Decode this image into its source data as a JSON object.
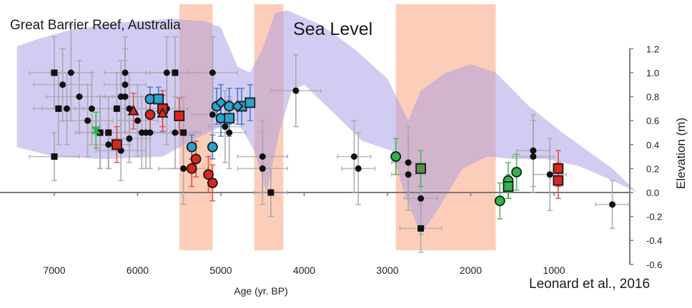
{
  "chart_data": {
    "type": "scatter",
    "title": "Sea Level",
    "subtitle": "Great Barrier Reef, Australia",
    "annotation": "Leonard et al., 2016",
    "xlabel": "Age (yr. BP)",
    "ylabel": "Elevation (m)",
    "xlim": [
      7500,
      0
    ],
    "ylim": [
      -0.6,
      1.2
    ],
    "x_ticks": [
      7000,
      6000,
      5000,
      4000,
      3000,
      2000,
      1000
    ],
    "x_tick_labels": [
      "7000",
      "6000",
      "5000",
      "4000",
      "3000",
      "2000",
      "1000"
    ],
    "y_ticks": [
      1.2,
      1.0,
      0.8,
      0.6,
      0.4,
      0.2,
      0.0,
      -0.2,
      -0.4,
      -0.6
    ],
    "y_tick_labels": [
      "1.2",
      "1.0",
      "0.8",
      "0.6",
      "0.4",
      "0.2",
      "0.0",
      "-0.2",
      "-0.4",
      "-0.6"
    ],
    "grid": false,
    "colors": {
      "envelope": "#c9c2f0",
      "band": "#fbc6ad",
      "overlap": "#d4a3b3",
      "black": "#111111",
      "blue": "#2aa3cf",
      "red": "#d8281f",
      "green": "#2fb34a",
      "olive": "#5f8b46",
      "errbar_gray": "#a8a6ad",
      "errbar_blue": "#3a78c4",
      "errbar_red": "#e0483a",
      "errbar_green": "#3cb54a",
      "axis": "#7a7a7a"
    },
    "shaded_bands": [
      {
        "label": "band-1",
        "x_from": 5500,
        "x_to": 5100
      },
      {
        "label": "band-2",
        "x_from": 4600,
        "x_to": 4250
      },
      {
        "label": "band-3",
        "x_from": 2900,
        "x_to": 1700
      }
    ],
    "sea_level_envelope": {
      "upper": [
        [
          7450,
          1.22
        ],
        [
          7200,
          1.28
        ],
        [
          6800,
          1.36
        ],
        [
          6200,
          1.42
        ],
        [
          5600,
          1.45
        ],
        [
          5200,
          1.43
        ],
        [
          5000,
          1.38
        ],
        [
          4800,
          1.05
        ],
        [
          4650,
          1.0
        ],
        [
          4500,
          1.2
        ],
        [
          4350,
          1.5
        ],
        [
          4200,
          1.52
        ],
        [
          3800,
          1.4
        ],
        [
          3400,
          1.2
        ],
        [
          3000,
          0.95
        ],
        [
          2750,
          0.6
        ],
        [
          2600,
          0.85
        ],
        [
          2300,
          1.0
        ],
        [
          2000,
          1.07
        ],
        [
          1700,
          1.0
        ],
        [
          1300,
          0.72
        ],
        [
          900,
          0.5
        ],
        [
          600,
          0.35
        ],
        [
          300,
          0.2
        ],
        [
          0,
          0.0
        ]
      ],
      "lower": [
        [
          0,
          0.0
        ],
        [
          300,
          0.1
        ],
        [
          700,
          0.22
        ],
        [
          1100,
          0.28
        ],
        [
          1500,
          0.28
        ],
        [
          1800,
          0.3
        ],
        [
          2100,
          0.2
        ],
        [
          2400,
          -0.15
        ],
        [
          2600,
          -0.35
        ],
        [
          2800,
          0.0
        ],
        [
          2950,
          0.35
        ],
        [
          3300,
          0.43
        ],
        [
          3700,
          0.7
        ],
        [
          4000,
          0.9
        ],
        [
          4150,
          0.85
        ],
        [
          4300,
          0.5
        ],
        [
          4450,
          0.0
        ],
        [
          4600,
          0.35
        ],
        [
          4800,
          0.6
        ],
        [
          5000,
          0.55
        ],
        [
          5300,
          0.45
        ],
        [
          5700,
          0.3
        ],
        [
          6400,
          0.28
        ],
        [
          7000,
          0.3
        ],
        [
          7450,
          0.38
        ]
      ]
    },
    "series": [
      {
        "name": "black-circles",
        "marker": "circle",
        "color": "#111111",
        "points": [
          [
            6800,
            1.0,
            250,
            0.4
          ],
          [
            6900,
            0.9,
            350,
            0.3
          ],
          [
            6700,
            0.8,
            400,
            0.3
          ],
          [
            6850,
            0.7,
            300,
            0.3
          ],
          [
            6550,
            0.7,
            200,
            0.3
          ],
          [
            6600,
            0.6,
            300,
            0.3
          ],
          [
            6450,
            0.5,
            250,
            0.3
          ],
          [
            6350,
            0.4,
            250,
            0.2
          ],
          [
            6200,
            0.35,
            300,
            0.25
          ],
          [
            6150,
            1.0,
            250,
            0.3
          ],
          [
            6150,
            0.9,
            250,
            0.3
          ],
          [
            6200,
            0.8,
            250,
            0.3
          ],
          [
            6150,
            0.8,
            250,
            0.3
          ],
          [
            6100,
            0.7,
            250,
            0.3
          ],
          [
            6000,
            0.6,
            250,
            0.3
          ],
          [
            6100,
            0.45,
            250,
            0.2
          ],
          [
            5950,
            0.5,
            250,
            0.3
          ],
          [
            5900,
            0.5,
            250,
            0.3
          ],
          [
            5850,
            0.5,
            250,
            0.3
          ],
          [
            5650,
            1.0,
            250,
            0.3
          ],
          [
            5650,
            0.7,
            250,
            0.3
          ],
          [
            5550,
            0.5,
            250,
            0.3
          ],
          [
            5450,
            0.2,
            300,
            0.3
          ],
          [
            5100,
            1.0,
            300,
            0.3
          ],
          [
            5100,
            0.65,
            250,
            0.3
          ],
          [
            4950,
            0.55,
            200,
            0.3
          ],
          [
            4900,
            0.5,
            200,
            0.3
          ],
          [
            4500,
            0.3,
            300,
            0.3
          ],
          [
            4500,
            0.2,
            300,
            0.3
          ],
          [
            4100,
            0.85,
            300,
            0.3
          ],
          [
            3400,
            0.3,
            200,
            0.3
          ],
          [
            3350,
            0.2,
            200,
            0.3
          ],
          [
            2750,
            0.25,
            200,
            0.3
          ],
          [
            2750,
            0.15,
            200,
            0.3
          ],
          [
            2600,
            -0.05,
            200,
            0.3
          ],
          [
            1250,
            0.35,
            200,
            0.3
          ],
          [
            1250,
            0.3,
            250,
            0.3
          ],
          [
            1050,
            0.15,
            200,
            0.3
          ],
          [
            300,
            -0.1,
            200,
            0.2
          ]
        ]
      },
      {
        "name": "black-squares",
        "marker": "square",
        "color": "#111111",
        "points": [
          [
            7000,
            1.0,
            300,
            0.3
          ],
          [
            6950,
            0.7,
            300,
            0.3
          ],
          [
            7000,
            0.3,
            300,
            0.2
          ],
          [
            6450,
            0.5,
            300,
            0.3
          ],
          [
            6250,
            0.7,
            200,
            0.3
          ],
          [
            5550,
            1.0,
            300,
            0.3
          ],
          [
            5450,
            0.5,
            200,
            0.3
          ],
          [
            6350,
            0.5,
            200,
            0.3
          ],
          [
            4400,
            0.0,
            200,
            0.2
          ],
          [
            2600,
            -0.3,
            250,
            0.2
          ]
        ]
      },
      {
        "name": "blue-circles",
        "marker": "circle",
        "color": "#2aa3cf",
        "points": [
          [
            5850,
            0.78,
            0,
            0.1
          ],
          [
            5350,
            0.38,
            0,
            0.1
          ],
          [
            5100,
            0.38,
            0,
            0.1
          ],
          [
            5050,
            0.72,
            0,
            0.15
          ],
          [
            5000,
            0.62,
            0,
            0.15
          ],
          [
            4900,
            0.72,
            0,
            0.15
          ]
        ]
      },
      {
        "name": "blue-squares",
        "marker": "square",
        "color": "#2aa3cf",
        "points": [
          [
            5750,
            0.78,
            0,
            0.1
          ],
          [
            4900,
            0.62,
            0,
            0.15
          ],
          [
            4750,
            0.72,
            0,
            0.15
          ],
          [
            4650,
            0.75,
            0,
            0.15
          ]
        ]
      },
      {
        "name": "blue-diamonds",
        "marker": "diamond",
        "color": "#2aa3cf",
        "points": [
          [
            5000,
            0.75,
            0,
            0.15
          ],
          [
            4800,
            0.72,
            0,
            0.15
          ]
        ]
      },
      {
        "name": "red-circles",
        "marker": "circle",
        "color": "#d8281f",
        "points": [
          [
            5850,
            0.65,
            0,
            0.15
          ],
          [
            5300,
            0.28,
            0,
            0.15
          ],
          [
            5350,
            0.2,
            0,
            0.15
          ],
          [
            5150,
            0.15,
            0,
            0.15
          ],
          [
            5100,
            0.08,
            0,
            0.15
          ]
        ]
      },
      {
        "name": "red-squares",
        "marker": "square",
        "color": "#d8281f",
        "points": [
          [
            5700,
            0.7,
            0,
            0.15
          ],
          [
            5500,
            0.64,
            0,
            0.15
          ],
          [
            6250,
            0.4,
            0,
            0.15
          ],
          [
            950,
            0.2,
            0,
            0.15
          ],
          [
            950,
            0.1,
            0,
            0.15
          ]
        ]
      },
      {
        "name": "red-triangles",
        "marker": "triangle",
        "color": "#d8281f",
        "points": [
          [
            6050,
            0.68,
            0,
            0.15
          ],
          [
            5700,
            0.66,
            0,
            0.15
          ]
        ]
      },
      {
        "name": "green-circles",
        "marker": "circle",
        "color": "#2fb34a",
        "points": [
          [
            2900,
            0.3,
            0,
            0.15
          ],
          [
            1550,
            0.1,
            0,
            0.15
          ],
          [
            1450,
            0.17,
            0,
            0.15
          ],
          [
            1650,
            -0.07,
            0,
            0.15
          ]
        ]
      },
      {
        "name": "green-squares",
        "marker": "square",
        "color": "#2fb34a",
        "points": [
          [
            1550,
            0.05,
            0,
            0.1
          ]
        ]
      },
      {
        "name": "olive-squares",
        "marker": "square",
        "color": "#5f8b46",
        "points": [
          [
            2600,
            0.2,
            0,
            0.15
          ]
        ]
      },
      {
        "name": "green-star",
        "marker": "star",
        "color": "#2fb34a",
        "points": [
          [
            6500,
            0.52,
            0,
            0.15
          ]
        ]
      }
    ],
    "point_format": "[age, elevation, age_error, elevation_error]"
  }
}
